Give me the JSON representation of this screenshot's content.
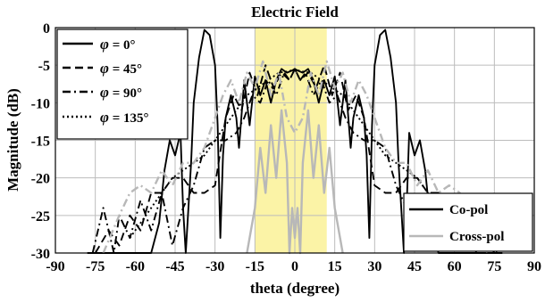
{
  "chart_data": {
    "type": "line",
    "title": "Electric Field",
    "xlabel": "theta (degree)",
    "ylabel": "Magnitude (dB)",
    "xlim": [
      -90,
      90
    ],
    "ylim": [
      -30,
      0
    ],
    "xticks": [
      -90,
      -75,
      -60,
      -45,
      -30,
      -15,
      0,
      15,
      30,
      45,
      60,
      75,
      90
    ],
    "yticks": [
      0,
      -5,
      -10,
      -15,
      -20,
      -25,
      -30
    ],
    "grid": true,
    "highlight_band": {
      "x": [
        -15,
        12
      ],
      "color": "#fbf3a6"
    },
    "phi_legend": {
      "placement": "top-left",
      "entries": [
        {
          "prefix": "φ",
          "text": " = 0°",
          "dash": "solid"
        },
        {
          "prefix": "φ",
          "text": " = 45°",
          "dash": "dashed"
        },
        {
          "prefix": "φ",
          "text": " = 90°",
          "dash": "dashdot"
        },
        {
          "prefix": "φ",
          "text": " = 135°",
          "dash": "dotted"
        }
      ]
    },
    "pol_legend": {
      "placement": "bottom-right",
      "entries": [
        {
          "label": "Co-pol",
          "color": "#000000"
        },
        {
          "label": "Cross-pol",
          "color": "#b8b8b8"
        }
      ]
    },
    "series": [
      {
        "pol": "co",
        "phi": 0,
        "color": "#000000",
        "dash": "solid",
        "x": [
          -78,
          -72,
          -66,
          -60,
          -54,
          -51,
          -49,
          -47,
          -45,
          -43,
          -42,
          -41,
          -39,
          -38,
          -36,
          -34,
          -32,
          -30,
          -29,
          -28,
          -27,
          -26,
          -24,
          -22,
          -21,
          -19,
          -17,
          -15,
          -13,
          -11,
          -9,
          -7,
          -5,
          -3,
          -1,
          0,
          1,
          3,
          5,
          7,
          9,
          11,
          13,
          15,
          17,
          19,
          21,
          22,
          24,
          26,
          27,
          28,
          29,
          30,
          32,
          34,
          36,
          38,
          39,
          41,
          42,
          43,
          45,
          47,
          49,
          51,
          54,
          60,
          66,
          72,
          78
        ],
        "y": [
          -30,
          -30,
          -30,
          -30,
          -30,
          -26,
          -19,
          -15,
          -17,
          -14,
          -24,
          -30,
          -18,
          -10,
          -4,
          -0.3,
          -1,
          -5,
          -13,
          -28,
          -17,
          -12,
          -9,
          -12,
          -16,
          -7,
          -13,
          -6.5,
          -9,
          -7,
          -10,
          -7,
          -5.5,
          -6,
          -5.7,
          -5.5,
          -5.7,
          -6,
          -5.5,
          -7,
          -10,
          -7,
          -9,
          -6.5,
          -13,
          -7,
          -16,
          -12,
          -9,
          -12,
          -17,
          -28,
          -13,
          -5,
          -1,
          -0.3,
          -4,
          -10,
          -18,
          -30,
          -24,
          -14,
          -17,
          -15,
          -19,
          -26,
          -30,
          -30,
          -30,
          -30,
          -30
        ]
      },
      {
        "pol": "co",
        "phi": 45,
        "color": "#000000",
        "dash": "dashed",
        "x": [
          -75,
          -70,
          -66,
          -62,
          -58,
          -54,
          -50,
          -46,
          -42,
          -38,
          -34,
          -30,
          -26,
          -23,
          -20,
          -17,
          -14,
          -11,
          -8,
          -5,
          -2,
          0,
          2,
          5,
          8,
          11,
          14,
          17,
          20,
          23,
          26,
          30,
          34,
          38,
          42,
          46,
          50,
          54,
          58,
          62,
          66,
          70,
          75
        ],
        "y": [
          -30,
          -27,
          -29,
          -25,
          -27,
          -22,
          -22,
          -20,
          -20,
          -22,
          -22,
          -21,
          -12,
          -9,
          -11,
          -6,
          -9,
          -5,
          -8,
          -6,
          -7,
          -5.5,
          -7,
          -6,
          -8,
          -5,
          -9,
          -6,
          -11,
          -9,
          -12,
          -21,
          -22,
          -22,
          -20,
          -20,
          -22,
          -22,
          -27,
          -25,
          -29,
          -27,
          -30
        ]
      },
      {
        "pol": "co",
        "phi": 90,
        "color": "#000000",
        "dash": "dashdot",
        "x": [
          -76,
          -72,
          -70,
          -68,
          -66,
          -62,
          -58,
          -54,
          -50,
          -46,
          -42,
          -38,
          -34,
          -30,
          -26,
          -22,
          -19,
          -16,
          -13,
          -10,
          -7,
          -4,
          -2,
          0,
          2,
          4,
          7,
          10,
          13,
          16,
          19,
          22,
          26,
          30,
          34,
          38,
          42,
          46,
          50,
          54,
          58,
          62,
          66,
          68,
          70,
          72,
          76
        ],
        "y": [
          -30,
          -24,
          -27,
          -30,
          -25,
          -28,
          -23,
          -27,
          -22,
          -29,
          -24,
          -21,
          -16,
          -15,
          -15,
          -14,
          -12,
          -9,
          -10,
          -7,
          -9,
          -6,
          -7,
          -5.5,
          -7,
          -6,
          -9,
          -7,
          -10,
          -9,
          -12,
          -14,
          -15,
          -15,
          -16,
          -21,
          -24,
          -29,
          -22,
          -27,
          -23,
          -28,
          -25,
          -30,
          -27,
          -24,
          -30
        ]
      },
      {
        "pol": "co",
        "phi": 135,
        "color": "#000000",
        "dash": "dotted",
        "x": [
          -62,
          -58,
          -54,
          -50,
          -46,
          -42,
          -38,
          -34,
          -30,
          -26,
          -22,
          -18,
          -14,
          -10,
          -6,
          -2,
          0,
          2,
          6,
          10,
          14,
          18,
          22,
          26,
          30,
          34,
          38,
          42,
          46,
          50,
          54,
          58,
          62
        ],
        "y": [
          -28,
          -26,
          -24,
          -22,
          -20,
          -19,
          -18,
          -17,
          -15,
          -13,
          -11,
          -9,
          -8,
          -7,
          -6,
          -5.8,
          -5.5,
          -5.8,
          -6,
          -7,
          -8,
          -9,
          -11,
          -13,
          -15,
          -17,
          -18,
          -19,
          -20,
          -22,
          -24,
          -26,
          -28
        ]
      },
      {
        "pol": "cross",
        "phi": 0,
        "color": "#b8b8b8",
        "dash": "solid",
        "x": [
          -18,
          -15,
          -13,
          -11,
          -9,
          -7,
          -5,
          -3,
          -2,
          -1,
          0,
          1,
          2,
          3,
          5,
          7,
          9,
          11,
          13,
          15,
          18
        ],
        "y": [
          -30,
          -24,
          -16,
          -22,
          -13,
          -20,
          -11,
          -18,
          -30,
          -24,
          -28,
          -24,
          -30,
          -18,
          -11,
          -20,
          -13,
          -22,
          -16,
          -24,
          -30
        ]
      },
      {
        "pol": "cross",
        "phi": 45,
        "color": "#b8b8b8",
        "dash": "dashdot",
        "x": [
          -72,
          -66,
          -62,
          -58,
          -54,
          -50,
          -46,
          -42,
          -38,
          -34,
          -30,
          -27,
          -24,
          -21,
          -18,
          -15,
          -12,
          -9,
          -6,
          -3,
          0,
          3,
          6,
          9,
          12,
          15,
          18,
          21,
          24,
          27,
          30,
          34,
          38,
          42,
          46,
          50,
          54,
          58,
          62,
          66,
          72
        ],
        "y": [
          -30,
          -25,
          -22,
          -21,
          -22,
          -19,
          -21,
          -18,
          -18,
          -16,
          -12,
          -9,
          -7,
          -10,
          -6,
          -8,
          -4.5,
          -9,
          -6,
          -12,
          -14,
          -12,
          -6,
          -9,
          -4.5,
          -8,
          -6,
          -10,
          -7,
          -9,
          -12,
          -16,
          -18,
          -18,
          -21,
          -19,
          -22,
          -21,
          -22,
          -25,
          -30
        ]
      }
    ]
  }
}
